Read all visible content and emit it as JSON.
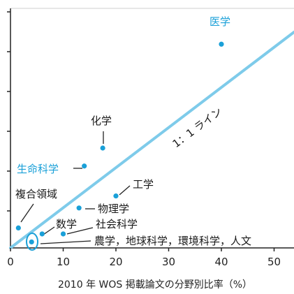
{
  "chart_data": {
    "type": "scatter",
    "xlabel": "2010 年 WOS 掲載論文の分野別比率（%）",
    "xlim": [
      0,
      55
    ],
    "ylim": [
      0,
      63
    ],
    "x_ticks": [
      0,
      10,
      20,
      30,
      40,
      50
    ],
    "reference_line": {
      "label": "1：1 ライン",
      "slope": 1,
      "color": "#7ecbea"
    },
    "points": [
      {
        "name": "医学",
        "x": 40,
        "y": 51,
        "color": "#1aa0d8",
        "label_color": "#1aa0d8"
      },
      {
        "name": "化学",
        "x": 17.5,
        "y": 25,
        "color": "#1aa0d8",
        "label_color": "#222222"
      },
      {
        "name": "生命科学",
        "x": 14,
        "y": 20.5,
        "color": "#1aa0d8",
        "label_color": "#1aa0d8"
      },
      {
        "name": "工学",
        "x": 20,
        "y": 13,
        "color": "#1aa0d8",
        "label_color": "#222222"
      },
      {
        "name": "物理学",
        "x": 13,
        "y": 10,
        "color": "#1aa0d8",
        "label_color": "#222222"
      },
      {
        "name": "複合領域",
        "x": 1.5,
        "y": 5,
        "color": "#1aa0d8",
        "label_color": "#222222"
      },
      {
        "name": "数学",
        "x": 6,
        "y": 3.5,
        "color": "#1aa0d8",
        "label_color": "#222222"
      },
      {
        "name": "社会科学",
        "x": 10,
        "y": 3.5,
        "color": "#1aa0d8",
        "label_color": "#222222"
      },
      {
        "name": "農学，地球科学，環境科学，人文",
        "x": 4,
        "y": 1.5,
        "color": "#1aa0d8",
        "label_color": "#222222"
      }
    ]
  }
}
